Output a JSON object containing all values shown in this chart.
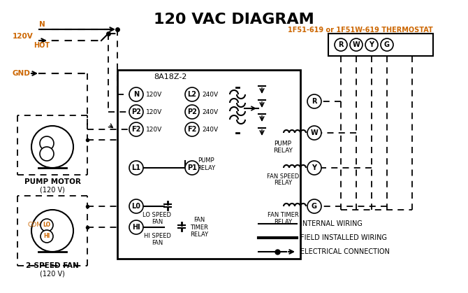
{
  "title": "120 VAC DIAGRAM",
  "title_color": "#1a1a1a",
  "title_fontsize": 16,
  "thermostat_label": "1F51-619 or 1F51W-619 THERMOSTAT",
  "thermostat_label_color": "#cc6600",
  "controller_label": "8A18Z-2",
  "terminals_R": "R",
  "terminals_W": "W",
  "terminals_Y": "Y",
  "terminals_G": "G",
  "orange_color": "#cc6600",
  "black_color": "#000000",
  "white_bg": "#ffffff",
  "legend_items": [
    {
      "label": "INTERNAL WIRING",
      "style": "solid"
    },
    {
      "label": "FIELD INSTALLED WIRING",
      "style": "thick_solid"
    },
    {
      "label": "ELECTRICAL CONNECTION",
      "style": "arrow"
    }
  ]
}
